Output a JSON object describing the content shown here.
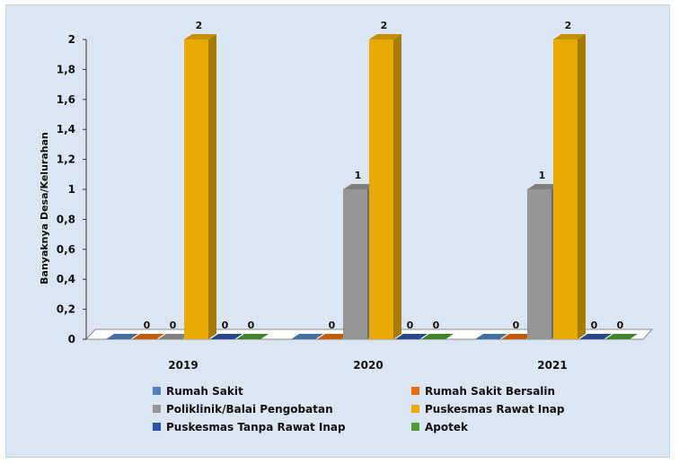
{
  "chart_data": {
    "type": "bar",
    "title": "",
    "xlabel": "",
    "ylabel": "Banyaknya Desa/Kelurahan",
    "ylim": [
      0,
      2
    ],
    "yticks": [
      "0",
      "0,2",
      "0,4",
      "0,6",
      "0,8",
      "1",
      "1,2",
      "1,4",
      "1,6",
      "1,8",
      "2"
    ],
    "categories": [
      "2019",
      "2020",
      "2021"
    ],
    "series": [
      {
        "name": "Rumah Sakit",
        "color": "#4f81bd",
        "values": [
          0,
          0,
          0
        ],
        "labels": [
          "",
          "",
          ""
        ]
      },
      {
        "name": "Rumah Sakit Bersalin",
        "color": "#e46c0a",
        "values": [
          0,
          0,
          0
        ],
        "labels": [
          "0",
          "0",
          "0"
        ]
      },
      {
        "name": "Poliklinik/Balai Pengobatan",
        "color": "#969696",
        "values": [
          0,
          1,
          1
        ],
        "labels": [
          "0",
          "1",
          "1"
        ]
      },
      {
        "name": "Puskesmas Rawat Inap",
        "color": "#e8a900",
        "values": [
          2,
          2,
          2
        ],
        "labels": [
          "2",
          "2",
          "2"
        ]
      },
      {
        "name": "Puskesmas Tanpa Rawat Inap",
        "color": "#2a54a6",
        "values": [
          0,
          0,
          0
        ],
        "labels": [
          "0",
          "0",
          "0"
        ]
      },
      {
        "name": "Apotek",
        "color": "#4e9a32",
        "values": [
          0,
          0,
          0
        ],
        "labels": [
          "0",
          "0",
          "0"
        ]
      }
    ],
    "grid": false,
    "legend_position": "bottom",
    "style": "3d-column"
  }
}
